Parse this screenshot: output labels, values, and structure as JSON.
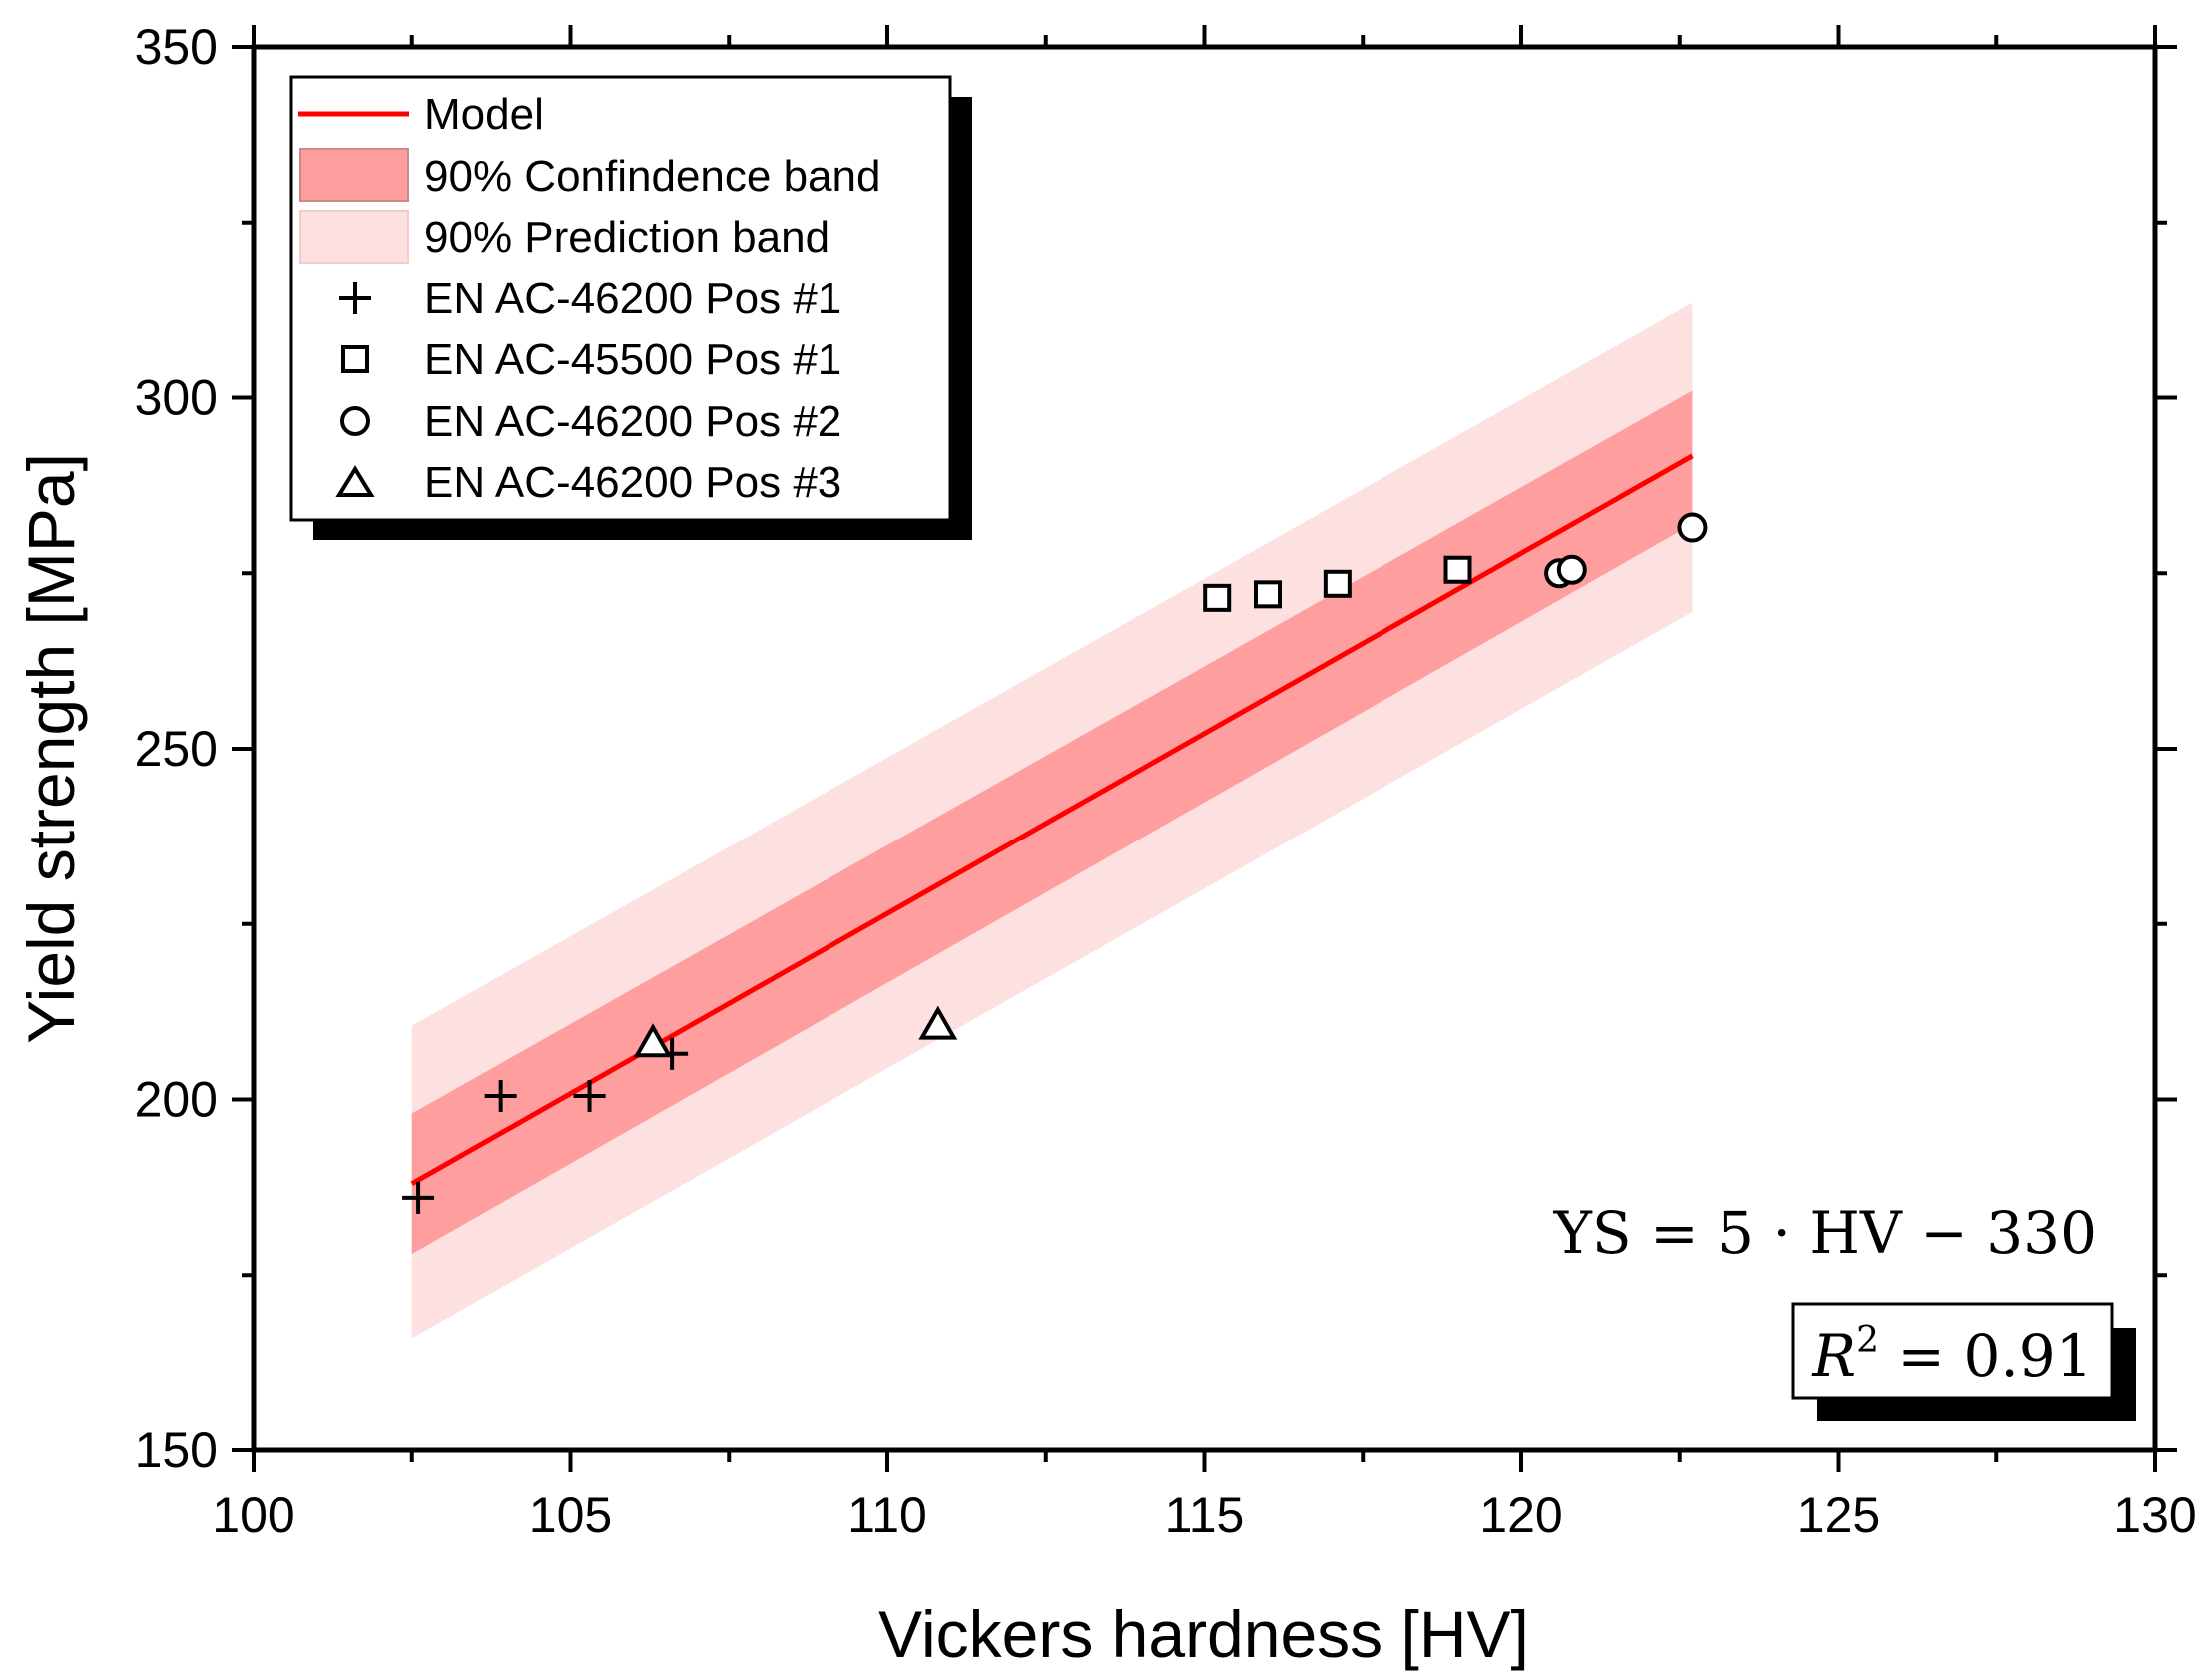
{
  "chart_data": {
    "type": "scatter",
    "xlabel": "Vickers hardness [HV]",
    "ylabel": "Yield strength [MPa]",
    "xlim": [
      100,
      130
    ],
    "ylim": [
      150,
      350
    ],
    "x_major_ticks": [
      100,
      105,
      110,
      115,
      120,
      125,
      130
    ],
    "x_tick_labels": [
      "100",
      "105",
      "110",
      "115",
      "120",
      "125",
      "130"
    ],
    "y_major_ticks": [
      150,
      200,
      250,
      300,
      350
    ],
    "y_tick_labels": [
      "150",
      "200",
      "250",
      "300",
      "350"
    ],
    "grid": false,
    "legend_position": "top-left",
    "model": {
      "name": "Model",
      "x": [
        102.5,
        122.7
      ],
      "y": [
        188,
        291.7
      ],
      "color": "#ff0000"
    },
    "confidence_band": {
      "name": "90% Confindence band",
      "x": [
        102.5,
        122.7
      ],
      "upper": [
        198,
        301
      ],
      "lower": [
        178,
        282
      ],
      "color": "#ff9e9e"
    },
    "prediction_band": {
      "name": "90% Prediction band",
      "x": [
        102.5,
        122.7
      ],
      "upper": [
        210.5,
        313.5
      ],
      "lower": [
        166,
        269.5
      ],
      "color": "#fde0e0"
    },
    "series": [
      {
        "name": "EN AC-46200 Pos #1",
        "marker": "plus",
        "x": [
          102.6,
          103.9,
          105.3,
          106.6
        ],
        "y": [
          186,
          200.5,
          200.5,
          206.5
        ]
      },
      {
        "name": "EN AC-45500 Pos #1",
        "marker": "square",
        "x": [
          115.2,
          116.0,
          117.1,
          119.0
        ],
        "y": [
          271.5,
          272,
          273.5,
          275.5
        ]
      },
      {
        "name": "EN AC-46200 Pos #2",
        "marker": "circle",
        "x": [
          120.6,
          120.8,
          122.7
        ],
        "y": [
          275,
          275.5,
          281.5
        ]
      },
      {
        "name": "EN AC-46200 Pos #3",
        "marker": "triangle",
        "x": [
          106.3,
          110.8
        ],
        "y": [
          208,
          210.5
        ]
      }
    ],
    "annotations": {
      "equation": {
        "lhs": "YS",
        "eq": "=",
        "num": "5",
        "dot": "·",
        "var": "HV",
        "minus": "−",
        "const": "330"
      },
      "r_squared": {
        "symbol": "R",
        "sup": "2",
        "eq": "=",
        "value": "0.91"
      }
    }
  }
}
